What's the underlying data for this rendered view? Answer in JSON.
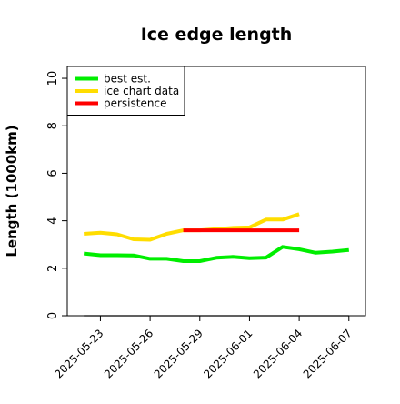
{
  "chart_data": {
    "type": "line",
    "title": "Ice edge length",
    "ylabel": "Length (1000km)",
    "xlabel": "",
    "ylim": [
      0,
      10.5
    ],
    "xlim": [
      "2025-05-21",
      "2025-06-08"
    ],
    "yticks": [
      0,
      2,
      4,
      6,
      8,
      10
    ],
    "xtick_labels": [
      "2025-05-23",
      "2025-05-26",
      "2025-05-29",
      "2025-06-01",
      "2025-06-04",
      "2025-06-07"
    ],
    "legend_position": "top-left",
    "grid": false,
    "series": [
      {
        "name": "best est.",
        "color": "#00ee00",
        "points": [
          {
            "x": "2025-05-22",
            "y": 2.62
          },
          {
            "x": "2025-05-23",
            "y": 2.55
          },
          {
            "x": "2025-05-24",
            "y": 2.55
          },
          {
            "x": "2025-05-25",
            "y": 2.54
          },
          {
            "x": "2025-05-26",
            "y": 2.4
          },
          {
            "x": "2025-05-27",
            "y": 2.4
          },
          {
            "x": "2025-05-28",
            "y": 2.3
          },
          {
            "x": "2025-05-29",
            "y": 2.3
          },
          {
            "x": "2025-05-30",
            "y": 2.44
          },
          {
            "x": "2025-05-31",
            "y": 2.48
          },
          {
            "x": "2025-06-01",
            "y": 2.42
          },
          {
            "x": "2025-06-02",
            "y": 2.45
          },
          {
            "x": "2025-06-03",
            "y": 2.9
          },
          {
            "x": "2025-06-04",
            "y": 2.8
          },
          {
            "x": "2025-06-05",
            "y": 2.65
          },
          {
            "x": "2025-06-06",
            "y": 2.7
          },
          {
            "x": "2025-06-07",
            "y": 2.77
          }
        ]
      },
      {
        "name": "ice chart data",
        "color": "#ffdd00",
        "points": [
          {
            "x": "2025-05-22",
            "y": 3.45
          },
          {
            "x": "2025-05-23",
            "y": 3.5
          },
          {
            "x": "2025-05-24",
            "y": 3.43
          },
          {
            "x": "2025-05-25",
            "y": 3.22
          },
          {
            "x": "2025-05-26",
            "y": 3.2
          },
          {
            "x": "2025-05-27",
            "y": 3.45
          },
          {
            "x": "2025-05-28",
            "y": 3.6
          },
          {
            "x": "2025-05-29",
            "y": 3.6
          },
          {
            "x": "2025-05-30",
            "y": 3.65
          },
          {
            "x": "2025-05-31",
            "y": 3.7
          },
          {
            "x": "2025-06-01",
            "y": 3.72
          },
          {
            "x": "2025-06-02",
            "y": 4.05
          },
          {
            "x": "2025-06-03",
            "y": 4.05
          },
          {
            "x": "2025-06-04",
            "y": 4.28
          }
        ]
      },
      {
        "name": "persistence",
        "color": "#ff0000",
        "points": [
          {
            "x": "2025-05-28",
            "y": 3.6
          },
          {
            "x": "2025-06-04",
            "y": 3.6
          }
        ]
      },
      {
        "name": "",
        "color": "#808080",
        "points": [
          {
            "x": "2025-05-22",
            "y": 0.0
          },
          {
            "x": "2025-06-07",
            "y": 0.0
          }
        ]
      }
    ]
  }
}
